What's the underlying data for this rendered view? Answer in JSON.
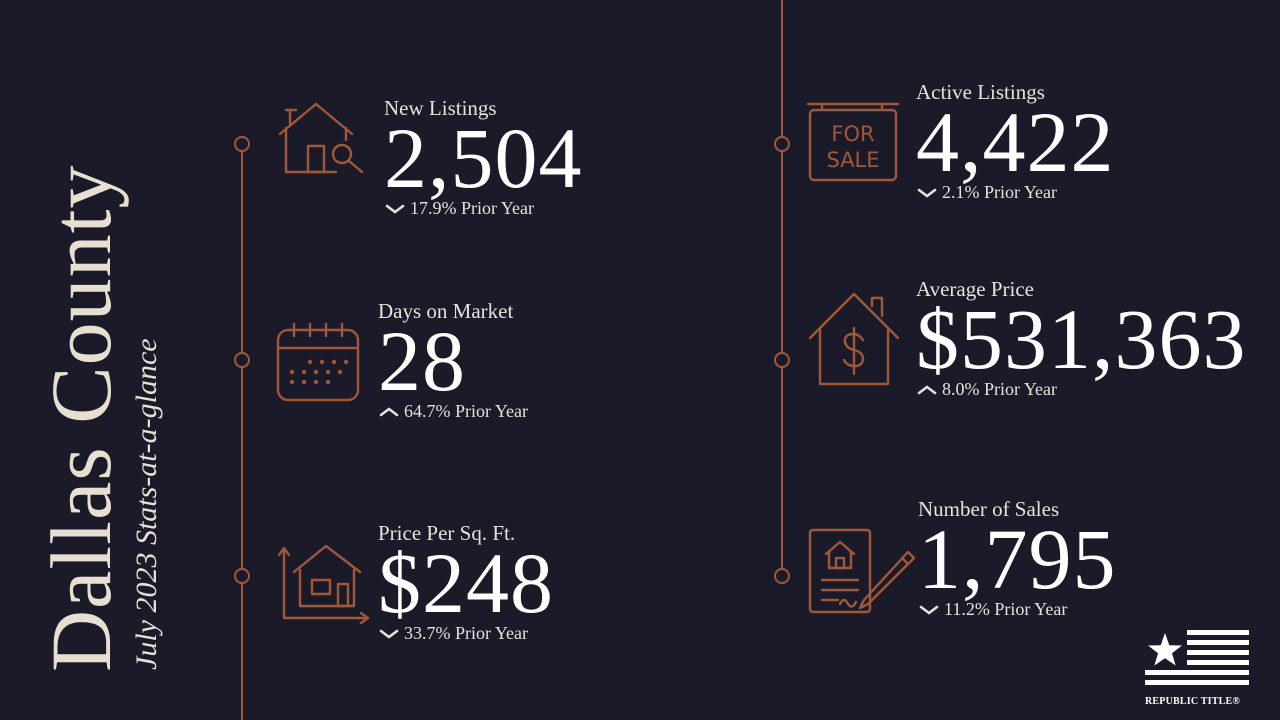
{
  "title": "Dallas County",
  "subtitle": "July 2023 Stats-at-a-glance",
  "colors": {
    "background": "#1b1a29",
    "accent": "#a0583a",
    "text": "#f4f0ea"
  },
  "stats": [
    {
      "label": "New Listings",
      "value": "2,504",
      "change": "17.9% Prior Year",
      "direction": "down",
      "icon": "house-search-icon"
    },
    {
      "label": "Days on Market",
      "value": "28",
      "change": "64.7% Prior Year",
      "direction": "up",
      "icon": "calendar-icon"
    },
    {
      "label": "Price Per Sq. Ft.",
      "value": "$248",
      "change": "33.7% Prior Year",
      "direction": "down",
      "icon": "house-measure-icon"
    },
    {
      "label": "Active Listings",
      "value": "4,422",
      "change": "2.1% Prior Year",
      "direction": "down",
      "icon": "for-sale-sign-icon"
    },
    {
      "label": "Average Price",
      "value": "$531,363",
      "change": "8.0% Prior Year",
      "direction": "up",
      "icon": "house-dollar-icon"
    },
    {
      "label": "Number of Sales",
      "value": "1,795",
      "change": "11.2% Prior Year",
      "direction": "down",
      "icon": "contract-signature-icon"
    }
  ],
  "icon_text": {
    "for_sale_line1": "FOR",
    "for_sale_line2": "SALE"
  },
  "logo": {
    "text": "REPUBLIC TITLE®",
    "icon": "flag-star-icon"
  }
}
